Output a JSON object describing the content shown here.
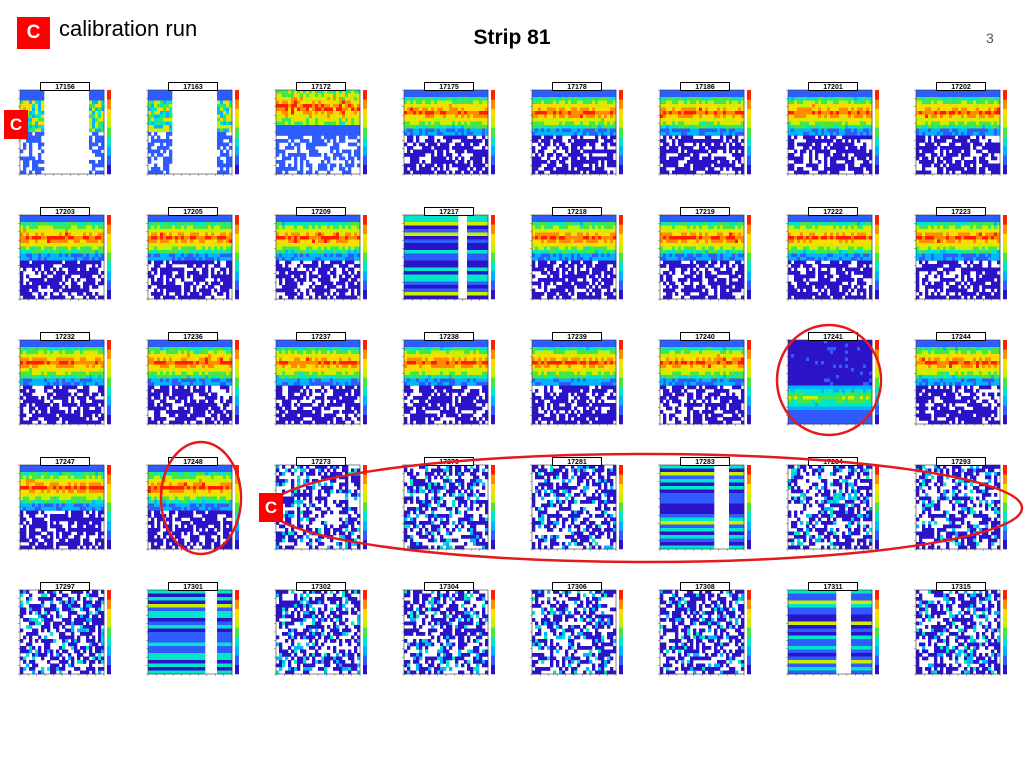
{
  "header": {
    "legend_badge": "C",
    "legend_text": "calibration run",
    "title": "Strip 81",
    "page_number": "3"
  },
  "markers": {
    "c_badge": "C"
  },
  "colors": {
    "accent": "#ff0000",
    "grid_bg": "#ffffff"
  },
  "chart_data": {
    "type": "heatmap",
    "title": "Strip 81",
    "panels": [
      {
        "run": "17156",
        "kind": "cal"
      },
      {
        "run": "17163",
        "kind": "cal"
      },
      {
        "run": "17172",
        "kind": "upper"
      },
      {
        "run": "17175",
        "kind": "normal"
      },
      {
        "run": "17178",
        "kind": "normal"
      },
      {
        "run": "17186",
        "kind": "normal"
      },
      {
        "run": "17201",
        "kind": "normal"
      },
      {
        "run": "17202",
        "kind": "normal"
      },
      {
        "run": "17203",
        "kind": "normal"
      },
      {
        "run": "17205",
        "kind": "normal"
      },
      {
        "run": "17209",
        "kind": "normal"
      },
      {
        "run": "17217",
        "kind": "stripes"
      },
      {
        "run": "17218",
        "kind": "normal"
      },
      {
        "run": "17219",
        "kind": "normal"
      },
      {
        "run": "17222",
        "kind": "normal"
      },
      {
        "run": "17223",
        "kind": "normal"
      },
      {
        "run": "17232",
        "kind": "normal"
      },
      {
        "run": "17236",
        "kind": "normal"
      },
      {
        "run": "17237",
        "kind": "normal"
      },
      {
        "run": "17238",
        "kind": "normal"
      },
      {
        "run": "17239",
        "kind": "normal"
      },
      {
        "run": "17240",
        "kind": "normal"
      },
      {
        "run": "17241",
        "kind": "bottom"
      },
      {
        "run": "17244",
        "kind": "normal"
      },
      {
        "run": "17247",
        "kind": "normal"
      },
      {
        "run": "17248",
        "kind": "normal"
      },
      {
        "run": "17273",
        "kind": "noise"
      },
      {
        "run": "17276",
        "kind": "noise"
      },
      {
        "run": "17281",
        "kind": "noise"
      },
      {
        "run": "17283",
        "kind": "stripes"
      },
      {
        "run": "17284",
        "kind": "noise"
      },
      {
        "run": "17293",
        "kind": "noise"
      },
      {
        "run": "17297",
        "kind": "noise"
      },
      {
        "run": "17301",
        "kind": "stripes"
      },
      {
        "run": "17302",
        "kind": "noise"
      },
      {
        "run": "17304",
        "kind": "noise"
      },
      {
        "run": "17306",
        "kind": "noise"
      },
      {
        "run": "17308",
        "kind": "noise"
      },
      {
        "run": "17311",
        "kind": "stripes"
      },
      {
        "run": "17315",
        "kind": "noise"
      }
    ],
    "calibration_runs": [
      "17156",
      "17273",
      "17276",
      "17281",
      "17283",
      "17284",
      "17293"
    ],
    "highlighted_runs": [
      "17241",
      "17248",
      "17273",
      "17276",
      "17281",
      "17283",
      "17284",
      "17293"
    ],
    "colorscale": [
      "#2b14c8",
      "#2e5cff",
      "#00b4ff",
      "#00e6c8",
      "#46e646",
      "#c8f000",
      "#ffdc00",
      "#ff8c00",
      "#ff1e00"
    ]
  }
}
